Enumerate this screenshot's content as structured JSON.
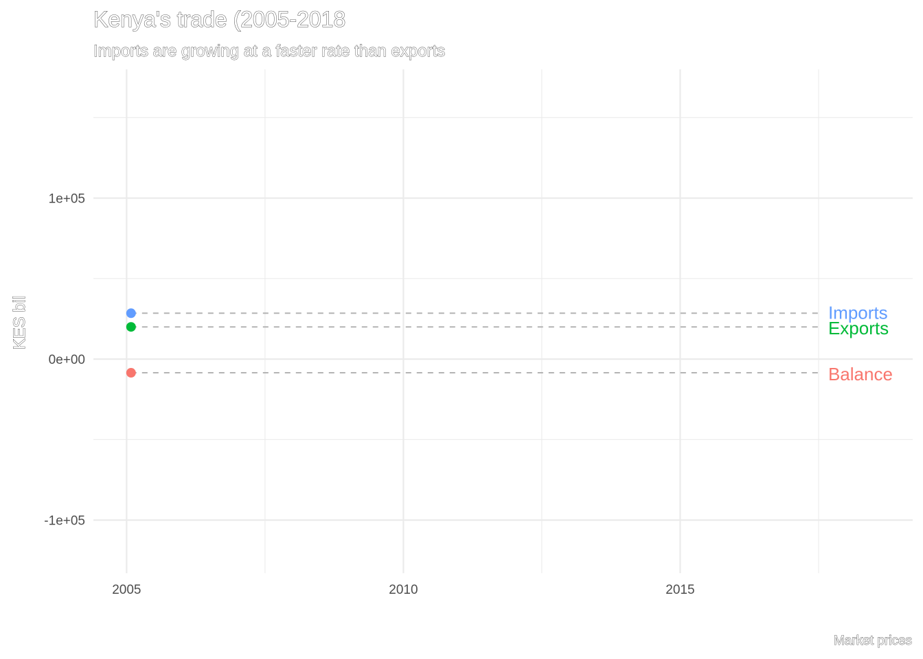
{
  "chart_data": {
    "type": "line",
    "title": "Kenya's trade (2005-2018",
    "subtitle": "Imports are growing at a faster rate than exports",
    "xlabel": "",
    "ylabel": "KES bil",
    "caption": "Market prices",
    "xlim": [
      2004.4,
      2019.2
    ],
    "ylim": [
      -133000,
      180000
    ],
    "x_ticks": [
      2005,
      2010,
      2015
    ],
    "y_ticks": [
      -100000,
      0,
      100000
    ],
    "x_tick_labels": [
      "2005",
      "2010",
      "2015"
    ],
    "y_tick_labels": [
      "-1e+05",
      "0e+00",
      "1e+05"
    ],
    "x_minor": [
      2007.5,
      2012.5,
      2017.5
    ],
    "y_minor": [
      -50000,
      50000,
      150000
    ],
    "grid": true,
    "legend": "none",
    "label_x": 2017.5,
    "x": [
      2005.08
    ],
    "series": [
      {
        "name": "Imports",
        "values": [
          28500
        ],
        "color": "#619CFF"
      },
      {
        "name": "Exports",
        "values": [
          20000
        ],
        "color": "#00BA38"
      },
      {
        "name": "Balance",
        "values": [
          -8500
        ],
        "color": "#F8766D"
      }
    ]
  }
}
